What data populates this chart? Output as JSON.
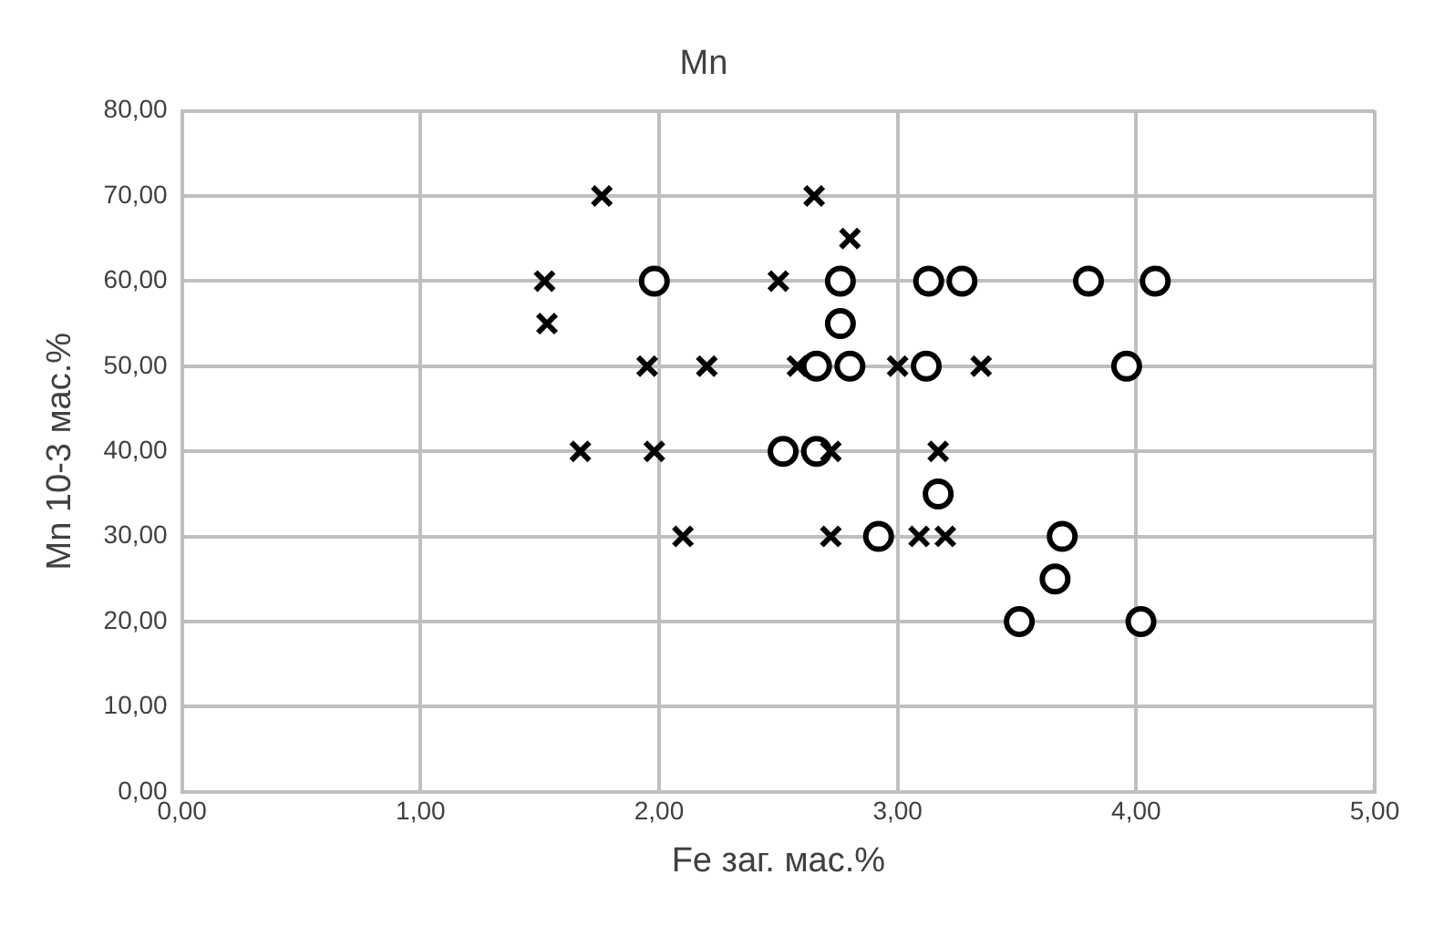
{
  "chart_data": {
    "type": "scatter",
    "title": "Mn",
    "xlabel": "Fe заг. мас.%",
    "ylabel": "Mn 10-3 мас.%",
    "xlim": [
      0,
      5
    ],
    "ylim": [
      0,
      80
    ],
    "xticks": [
      {
        "value": 0,
        "label": "0,00"
      },
      {
        "value": 1,
        "label": "1,00"
      },
      {
        "value": 2,
        "label": "2,00"
      },
      {
        "value": 3,
        "label": "3,00"
      },
      {
        "value": 4,
        "label": "4,00"
      },
      {
        "value": 5,
        "label": "5,00"
      }
    ],
    "yticks": [
      {
        "value": 0,
        "label": "0,00"
      },
      {
        "value": 10,
        "label": "10,00"
      },
      {
        "value": 20,
        "label": "20,00"
      },
      {
        "value": 30,
        "label": "30,00"
      },
      {
        "value": 40,
        "label": "40,00"
      },
      {
        "value": 50,
        "label": "50,00"
      },
      {
        "value": 60,
        "label": "60,00"
      },
      {
        "value": 70,
        "label": "70,00"
      },
      {
        "value": 80,
        "label": "80,00"
      }
    ],
    "grid": true,
    "legend": false,
    "series": [
      {
        "color": "#000000",
        "marker": "cross",
        "x": [
          1.76,
          1.52,
          1.53,
          1.95,
          2.2,
          1.67,
          1.98,
          2.1,
          2.65,
          2.8,
          2.5,
          2.58,
          2.72,
          2.72,
          3.0,
          3.35,
          3.17,
          3.09,
          3.2
        ],
        "values": [
          70,
          60,
          55,
          50,
          50,
          40,
          40,
          30,
          70,
          65,
          60,
          50,
          40,
          30,
          50,
          50,
          40,
          30,
          30
        ]
      },
      {
        "color": "#000000",
        "marker": "circle",
        "x": [
          1.98,
          2.76,
          2.76,
          2.66,
          2.8,
          2.52,
          2.66,
          2.92,
          3.13,
          3.27,
          3.8,
          4.08,
          3.12,
          3.96,
          3.17,
          3.69,
          3.66,
          3.51,
          4.02
        ],
        "values": [
          60,
          60,
          55,
          50,
          50,
          40,
          40,
          30,
          60,
          60,
          60,
          60,
          50,
          50,
          35,
          30,
          25,
          20,
          20
        ]
      }
    ]
  }
}
